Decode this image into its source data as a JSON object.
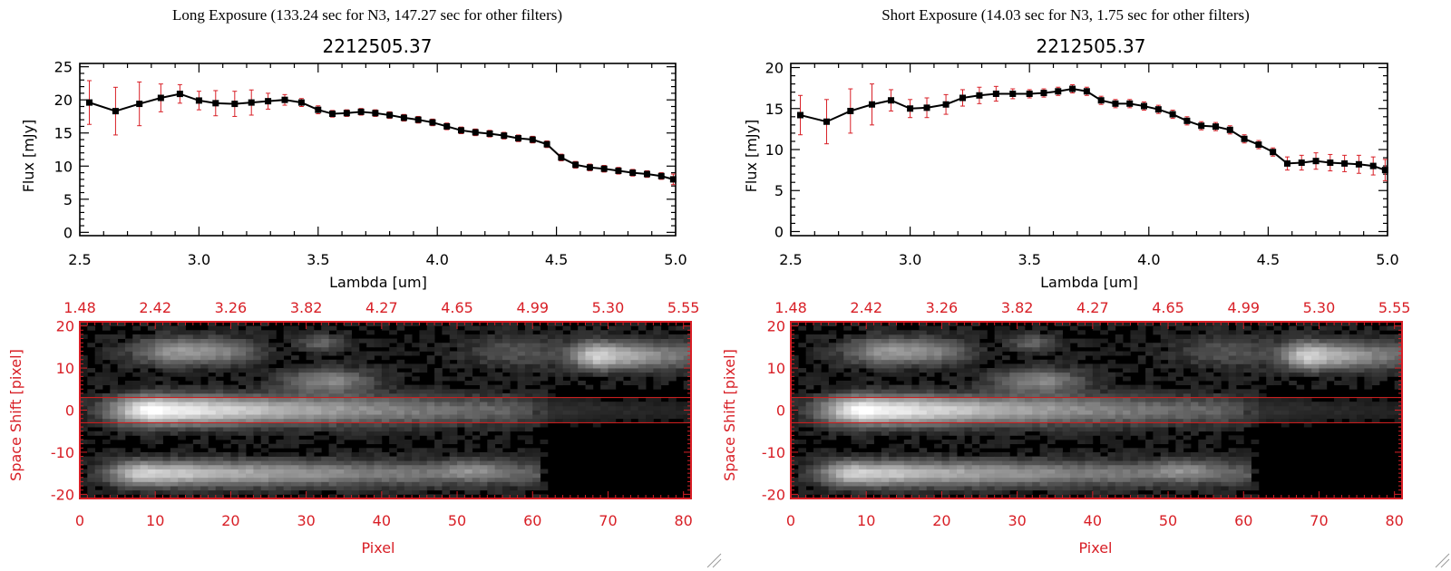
{
  "panels": [
    {
      "id": "long",
      "header": "Long Exposure (133.24 sec for N3, 147.27 sec for other filters)",
      "chart_data": {
        "type": "line",
        "title": "2212505.37",
        "xlabel": "Lambda [um]",
        "ylabel": "Flux [mJy]",
        "xlim": [
          2.5,
          5.0
        ],
        "ylim": [
          -0.5,
          25.5
        ],
        "xticks": [
          "2.5",
          "3.0",
          "3.5",
          "4.0",
          "4.5",
          "5.0"
        ],
        "yticks": [
          "0",
          "5",
          "10",
          "15",
          "20",
          "25"
        ],
        "x": [
          2.54,
          2.65,
          2.75,
          2.84,
          2.92,
          3.0,
          3.07,
          3.15,
          3.22,
          3.29,
          3.36,
          3.43,
          3.5,
          3.56,
          3.62,
          3.68,
          3.74,
          3.8,
          3.86,
          3.92,
          3.98,
          4.04,
          4.1,
          4.16,
          4.22,
          4.28,
          4.34,
          4.4,
          4.46,
          4.52,
          4.58,
          4.64,
          4.7,
          4.76,
          4.82,
          4.88,
          4.94,
          4.99
        ],
        "y": [
          19.6,
          18.3,
          19.4,
          20.3,
          20.9,
          19.9,
          19.5,
          19.4,
          19.6,
          19.8,
          20.0,
          19.6,
          18.5,
          17.9,
          18.0,
          18.2,
          18.0,
          17.7,
          17.3,
          17.0,
          16.6,
          16.0,
          15.4,
          15.1,
          14.9,
          14.6,
          14.2,
          14.0,
          13.3,
          11.3,
          10.2,
          9.8,
          9.6,
          9.3,
          9.0,
          8.8,
          8.5,
          8.0
        ],
        "err": [
          3.3,
          3.6,
          3.3,
          2.1,
          1.4,
          1.4,
          1.9,
          1.9,
          1.9,
          1.2,
          0.8,
          0.6,
          0.6,
          0.5,
          0.5,
          0.5,
          0.5,
          0.5,
          0.5,
          0.5,
          0.5,
          0.5,
          0.5,
          0.5,
          0.5,
          0.5,
          0.5,
          0.5,
          0.5,
          0.5,
          0.5,
          0.5,
          0.5,
          0.5,
          0.5,
          0.5,
          0.5,
          0.8
        ]
      },
      "image": {
        "ylabel": "Space Shift [pixel]",
        "xlabel": "Pixel",
        "xticks": [
          "0",
          "10",
          "20",
          "30",
          "40",
          "50",
          "60",
          "70",
          "80"
        ],
        "yticks": [
          "20",
          "10",
          "0",
          "-10",
          "-20"
        ],
        "top_ticks": [
          "1.48",
          "2.42",
          "3.26",
          "3.82",
          "4.27",
          "4.65",
          "4.99",
          "5.30",
          "5.55"
        ],
        "xlim": [
          0,
          81
        ],
        "ylim": [
          -21,
          21
        ],
        "aperture": [
          -3,
          3
        ],
        "color_axis": "#d81f26"
      }
    },
    {
      "id": "short",
      "header": "Short Exposure (14.03 sec for N3, 1.75 sec for other filters)",
      "chart_data": {
        "type": "line",
        "title": "2212505.37",
        "xlabel": "Lambda [um]",
        "ylabel": "Flux [mJy]",
        "xlim": [
          2.5,
          5.0
        ],
        "ylim": [
          -0.5,
          20.5
        ],
        "xticks": [
          "2.5",
          "3.0",
          "3.5",
          "4.0",
          "4.5",
          "5.0"
        ],
        "yticks": [
          "0",
          "5",
          "10",
          "15",
          "20"
        ],
        "x": [
          2.54,
          2.65,
          2.75,
          2.84,
          2.92,
          3.0,
          3.07,
          3.15,
          3.22,
          3.29,
          3.36,
          3.43,
          3.5,
          3.56,
          3.62,
          3.68,
          3.74,
          3.8,
          3.86,
          3.92,
          3.98,
          4.04,
          4.1,
          4.16,
          4.22,
          4.28,
          4.34,
          4.4,
          4.46,
          4.52,
          4.58,
          4.64,
          4.7,
          4.76,
          4.82,
          4.88,
          4.94,
          4.99
        ],
        "y": [
          14.2,
          13.4,
          14.7,
          15.5,
          16.0,
          15.0,
          15.1,
          15.5,
          16.3,
          16.6,
          16.8,
          16.8,
          16.8,
          16.9,
          17.1,
          17.4,
          17.1,
          16.0,
          15.6,
          15.6,
          15.3,
          14.9,
          14.3,
          13.5,
          12.9,
          12.8,
          12.4,
          11.3,
          10.6,
          9.7,
          8.3,
          8.4,
          8.6,
          8.4,
          8.3,
          8.2,
          8.0,
          7.5
        ],
        "err": [
          2.4,
          2.7,
          2.7,
          2.5,
          1.3,
          1.1,
          1.2,
          1.2,
          1.0,
          1.0,
          0.9,
          0.6,
          0.5,
          0.5,
          0.5,
          0.5,
          0.5,
          0.5,
          0.5,
          0.5,
          0.5,
          0.5,
          0.5,
          0.5,
          0.5,
          0.5,
          0.5,
          0.5,
          0.5,
          0.5,
          0.8,
          0.9,
          1.0,
          1.0,
          1.0,
          1.1,
          1.1,
          1.3
        ]
      },
      "image": {
        "ylabel": "Space Shift [pixel]",
        "xlabel": "Pixel",
        "xticks": [
          "0",
          "10",
          "20",
          "30",
          "40",
          "50",
          "60",
          "70",
          "80"
        ],
        "yticks": [
          "20",
          "10",
          "0",
          "-10",
          "-20"
        ],
        "top_ticks": [
          "1.48",
          "2.42",
          "3.26",
          "3.82",
          "4.27",
          "4.65",
          "4.99",
          "5.30",
          "5.55"
        ],
        "xlim": [
          0,
          81
        ],
        "ylim": [
          -21,
          21
        ],
        "aperture": [
          -3,
          3
        ],
        "color_axis": "#d81f26"
      }
    }
  ],
  "colors": {
    "line": "#000000",
    "marker": "#000000",
    "errorbar": "#d81f26",
    "aperture": "#c81e1e",
    "image_bg": "#000000"
  }
}
